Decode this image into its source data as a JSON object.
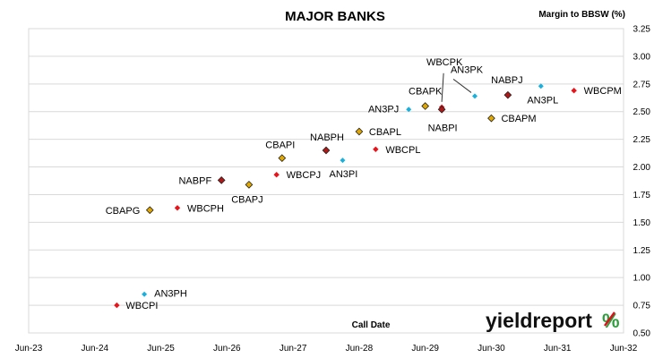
{
  "chart_data": {
    "type": "scatter",
    "title": "MAJOR BANKS",
    "xlabel": "Call Date",
    "ylabel": "Margin to BBSW (%)",
    "x_ticks": [
      "Jun-23",
      "Jun-24",
      "Jun-25",
      "Jun-26",
      "Jun-27",
      "Jun-28",
      "Jun-29",
      "Jun-30",
      "Jun-31",
      "Jun-32"
    ],
    "xlim": [
      "Jun-23",
      "Jun-32"
    ],
    "ylim": [
      0.5,
      3.25
    ],
    "y_ticks": [
      "0.50",
      "0.75",
      "1.00",
      "1.25",
      "1.50",
      "1.75",
      "2.00",
      "2.25",
      "2.50",
      "2.75",
      "3.00",
      "3.25"
    ],
    "y_axis_position": "right",
    "grid": "horizontal",
    "legend": "none",
    "colors": {
      "WBC": "#e8141b",
      "CBA": "#e0a800",
      "NAB": "#b01818",
      "AN3": "#1ab0dc"
    },
    "points": [
      {
        "label": "WBCPI",
        "bank": "WBC",
        "x": "2024-10",
        "y": 0.75
      },
      {
        "label": "AN3PH",
        "bank": "AN3",
        "x": "2025-03",
        "y": 0.85
      },
      {
        "label": "CBAPG",
        "bank": "CBA",
        "x": "2025-04",
        "y": 1.61
      },
      {
        "label": "WBCPH",
        "bank": "WBC",
        "x": "2025-09",
        "y": 1.63
      },
      {
        "label": "NABPF",
        "bank": "NAB",
        "x": "2026-05",
        "y": 1.88
      },
      {
        "label": "CBAPJ",
        "bank": "CBA",
        "x": "2026-10",
        "y": 1.84
      },
      {
        "label": "WBCPJ",
        "bank": "WBC",
        "x": "2027-03",
        "y": 1.93
      },
      {
        "label": "CBAPI",
        "bank": "CBA",
        "x": "2027-04",
        "y": 2.08
      },
      {
        "label": "NABPH",
        "bank": "NAB",
        "x": "2027-12",
        "y": 2.15
      },
      {
        "label": "AN3PI",
        "bank": "AN3",
        "x": "2028-03",
        "y": 2.06
      },
      {
        "label": "CBAPL",
        "bank": "CBA",
        "x": "2028-06",
        "y": 2.32
      },
      {
        "label": "WBCPL",
        "bank": "WBC",
        "x": "2028-09",
        "y": 2.16
      },
      {
        "label": "AN3PJ",
        "bank": "AN3",
        "x": "2029-03",
        "y": 2.52
      },
      {
        "label": "CBAPK",
        "bank": "CBA",
        "x": "2029-06",
        "y": 2.55
      },
      {
        "label": "WBCPK",
        "bank": "WBC",
        "x": "2029-09",
        "y": 2.54
      },
      {
        "label": "NABPI",
        "bank": "NAB",
        "x": "2029-09",
        "y": 2.52
      },
      {
        "label": "AN3PK",
        "bank": "AN3",
        "x": "2030-03",
        "y": 2.64
      },
      {
        "label": "CBAPM",
        "bank": "CBA",
        "x": "2030-06",
        "y": 2.44
      },
      {
        "label": "NABPJ",
        "bank": "NAB",
        "x": "2030-09",
        "y": 2.65
      },
      {
        "label": "AN3PL",
        "bank": "AN3",
        "x": "2031-03",
        "y": 2.73
      },
      {
        "label": "WBCPM",
        "bank": "WBC",
        "x": "2031-09",
        "y": 2.69
      }
    ]
  },
  "logo": {
    "text": "yieldreport",
    "symbol": "%"
  }
}
